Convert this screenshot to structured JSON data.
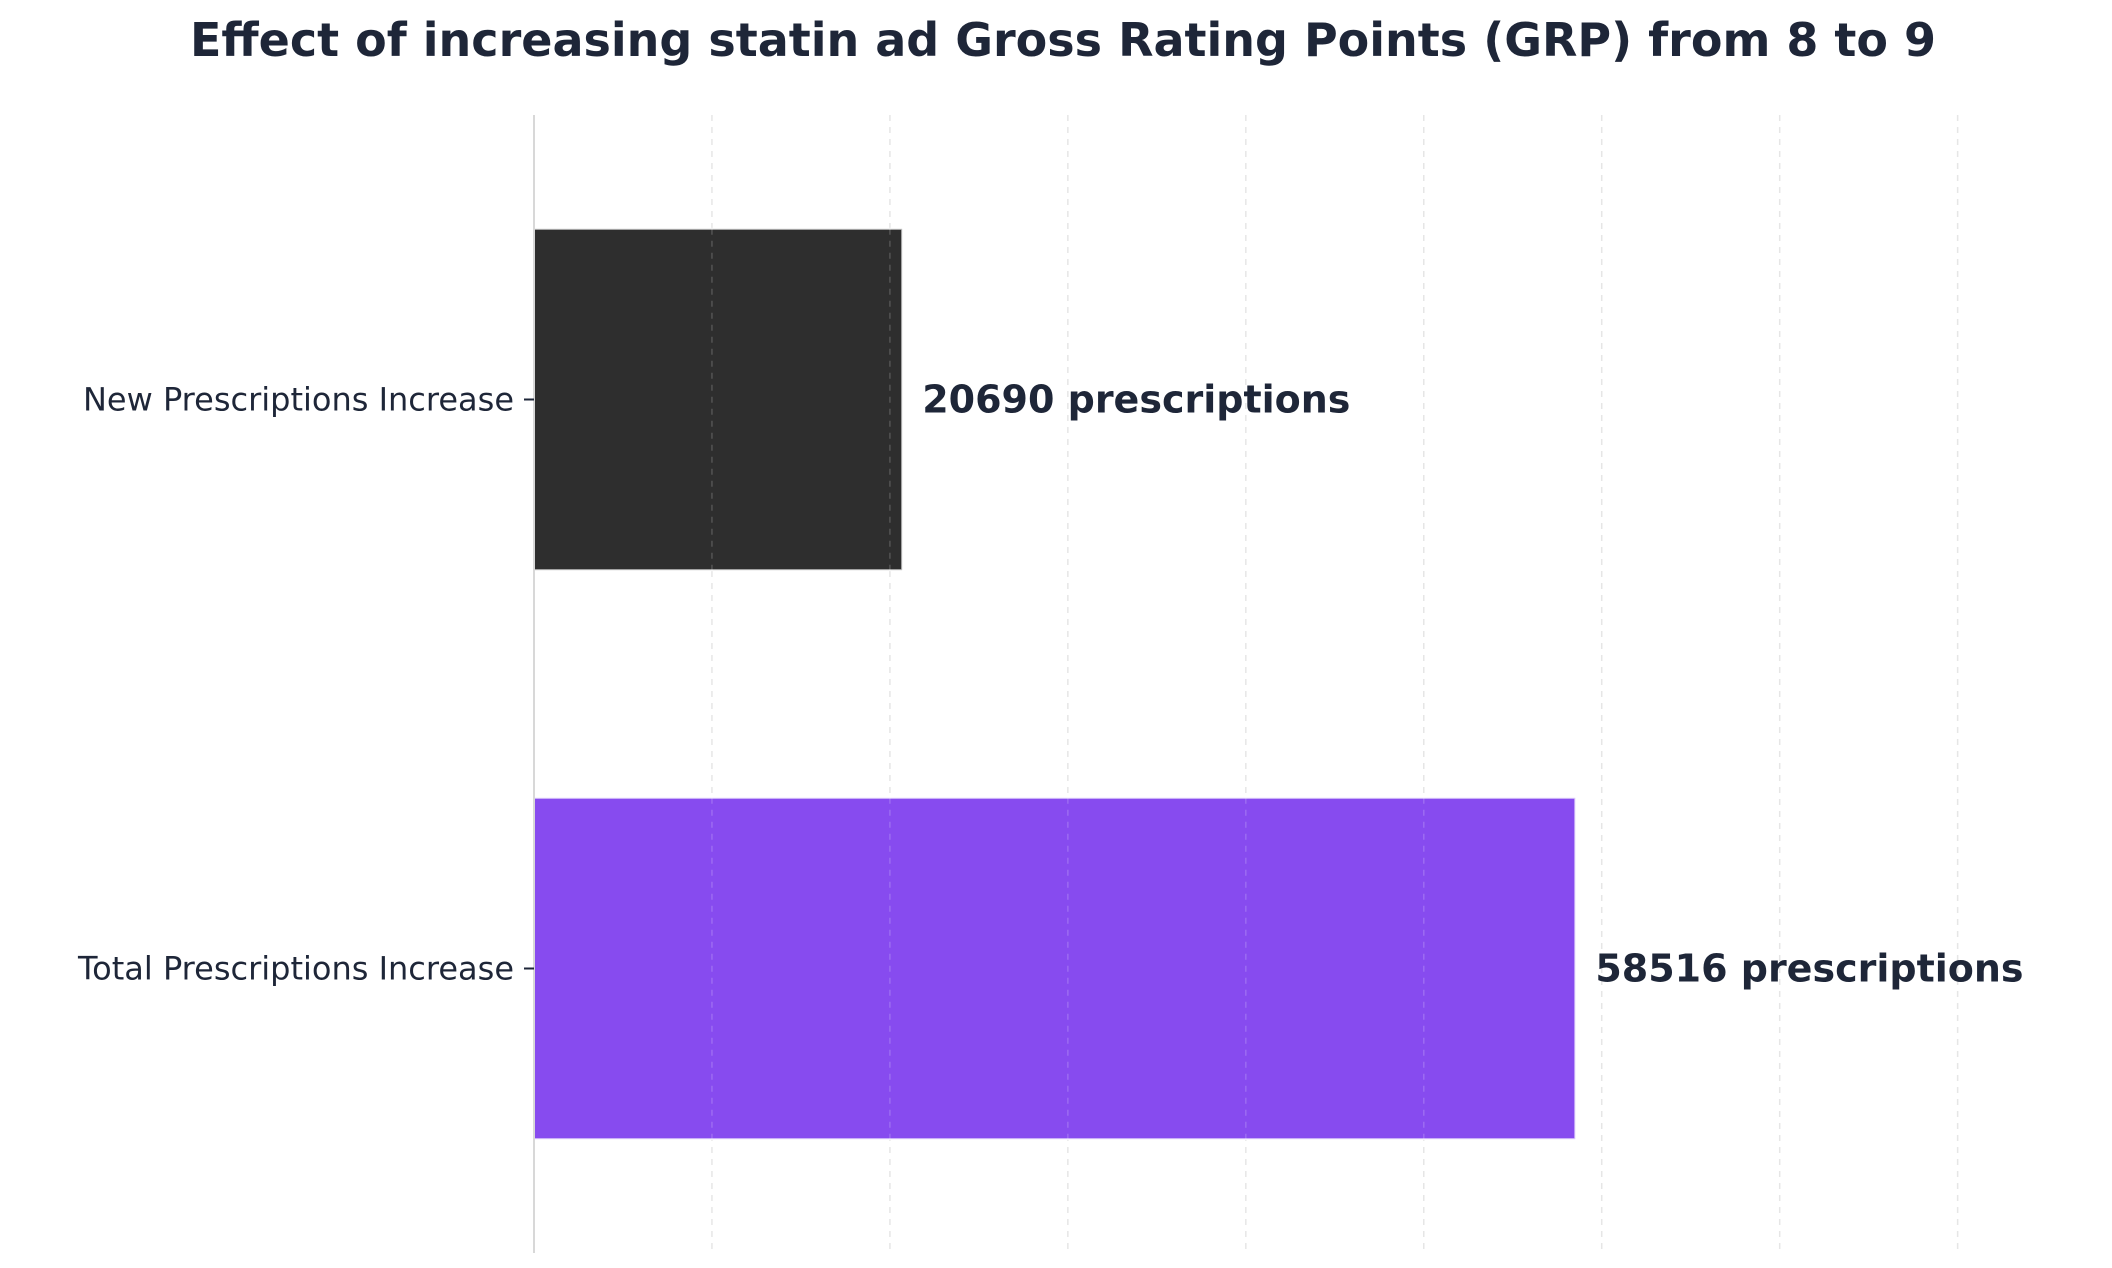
{
  "chart_data": {
    "type": "bar",
    "orientation": "horizontal",
    "title": "Effect of increasing statin ad Gross Rating Points (GRP) from 8 to 9",
    "xlabel": "",
    "ylabel": "",
    "categories": [
      "New Prescriptions Increase",
      "Total Prescriptions Increase"
    ],
    "values": [
      20690,
      58516
    ],
    "data_labels": [
      "20690 prescriptions",
      "58516 prescriptions"
    ],
    "xlim": [
      0,
      88000
    ],
    "x_gridlines": [
      10000,
      20000,
      30000,
      40000,
      50000,
      60000,
      70000,
      80000
    ],
    "x_tick_labels_shown": false,
    "grid": true,
    "legend": "none",
    "colors": [
      "#2e2e2e",
      "#874bef"
    ],
    "text_color": "#1e2638"
  }
}
